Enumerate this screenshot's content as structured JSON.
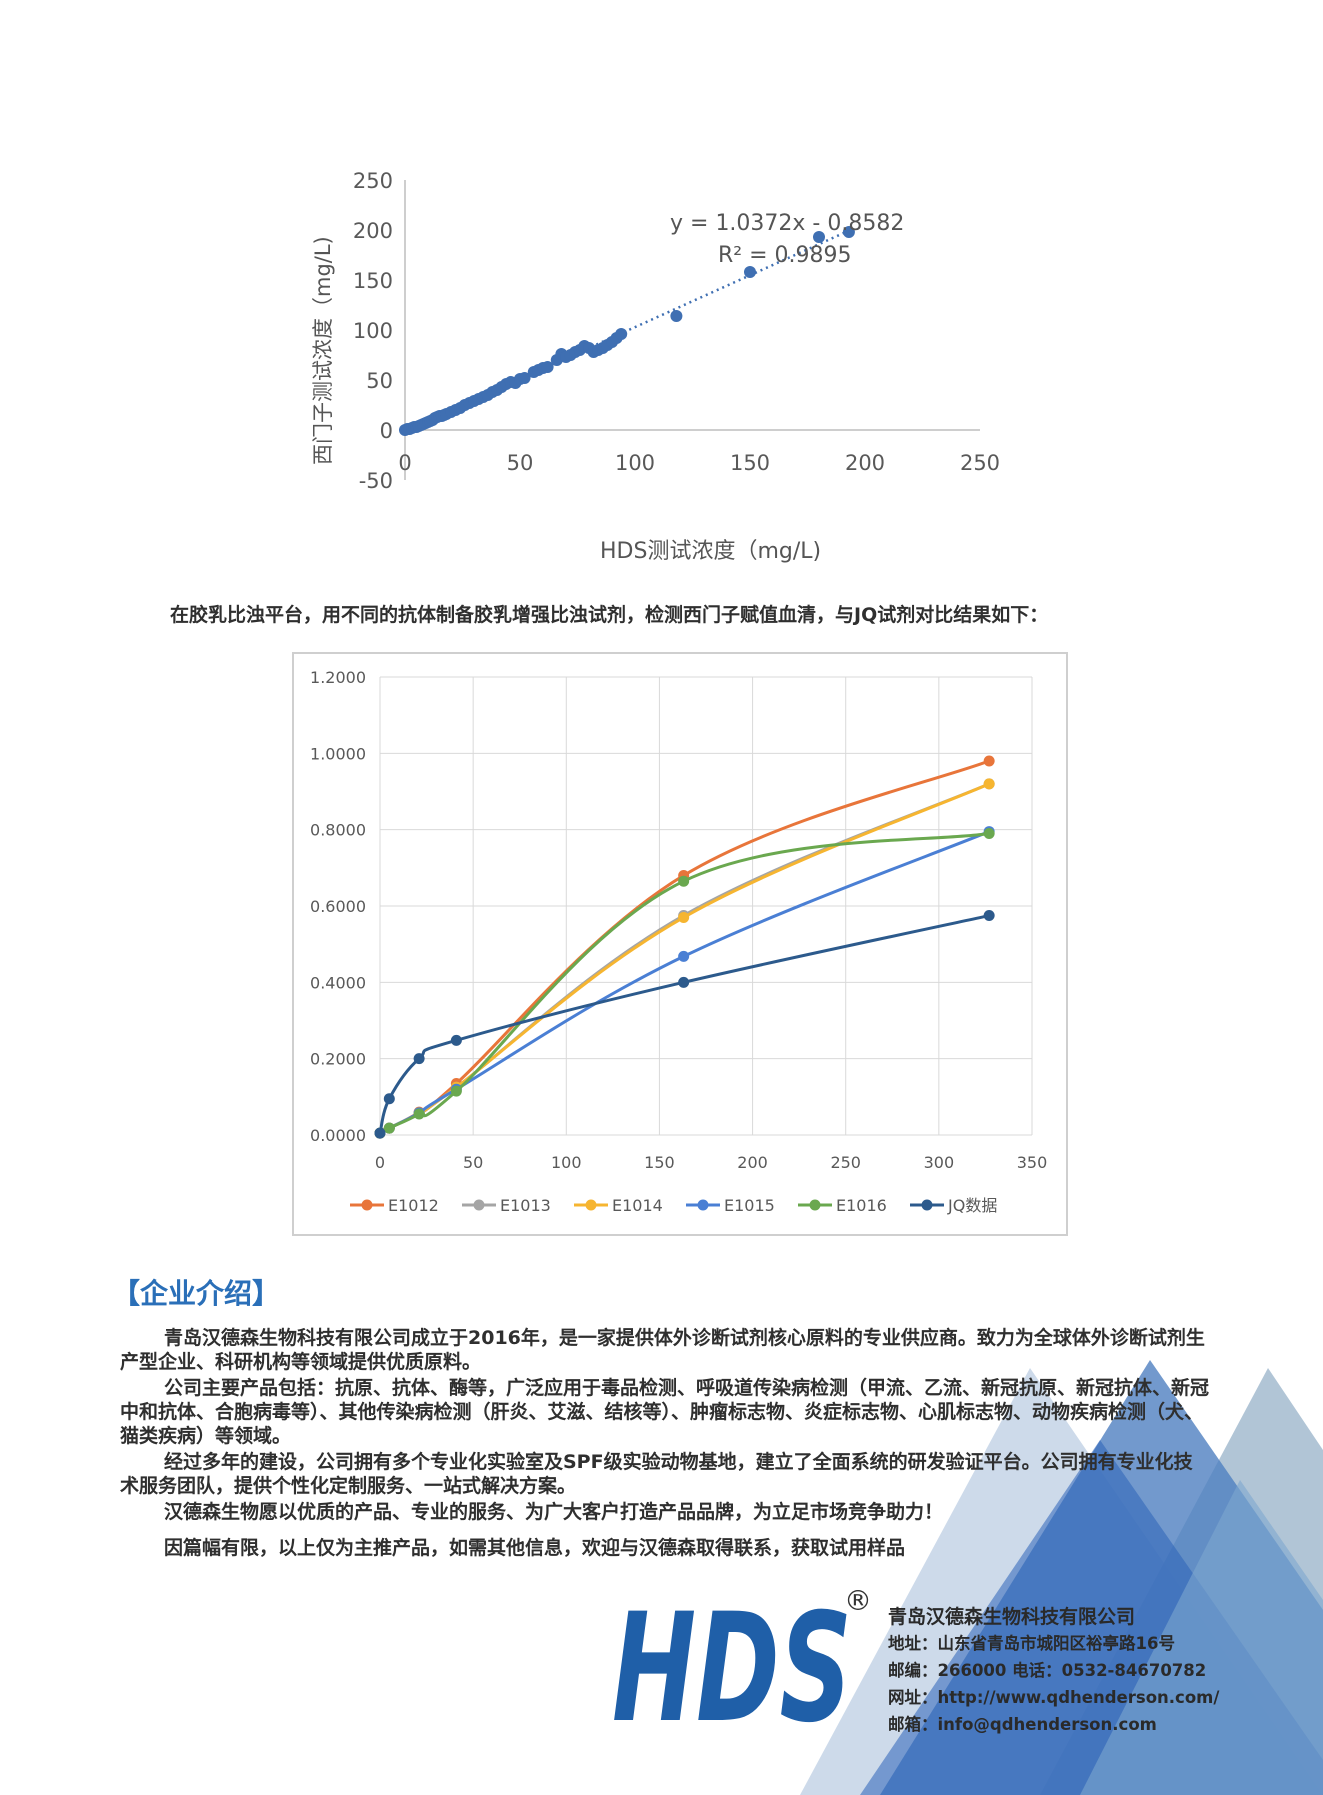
{
  "scatter": {
    "ylabel": "西门子测试浓度（mg/L)",
    "xlabel": "HDS测试浓度（mg/L)",
    "equation": "y = 1.0372x - 0.8582",
    "r2": "R² = 0.9895",
    "xticks": [
      "0",
      "50",
      "100",
      "150",
      "200",
      "250"
    ],
    "yticks": [
      "250",
      "200",
      "150",
      "100",
      "50",
      "0",
      "-50"
    ]
  },
  "caption": "在胶乳比浊平台，用不同的抗体制备胶乳增强比浊试剂，检测西门子赋值血清，与JQ试剂对比结果如下：",
  "section_title": "【企业介绍】",
  "paragraphs": [
    "青岛汉德森生物科技有限公司成立于2016年，是一家提供体外诊断试剂核心原料的专业供应商。致力为全球体外诊断试剂生产型企业、科研机构等领域提供优质原料。",
    "公司主要产品包括：抗原、抗体、酶等，广泛应用于毒品检测、呼吸道传染病检测（甲流、乙流、新冠抗原、新冠抗体、新冠中和抗体、合胞病毒等）、其他传染病检测（肝炎、艾滋、结核等）、肿瘤标志物、炎症标志物、心肌标志物、动物疾病检测（犬、猫类疾病）等领域。",
    "经过多年的建设，公司拥有多个专业化实验室及SPF级实验动物基地，建立了全面系统的研发验证平台。公司拥有专业化技术服务团队，提供个性化定制服务、一站式解决方案。",
    "汉德森生物愿以优质的产品、专业的服务、为广大客户打造产品品牌，为立足市场竞争助力！",
    "因篇幅有限，以上仅为主推产品，如需其他信息，欢迎与汉德森取得联系，获取试用样品"
  ],
  "logo": {
    "text": "HDS",
    "registered": "®"
  },
  "contact": {
    "company": "青岛汉德森生物科技有限公司",
    "address": "地址：山东省青岛市城阳区裕亭路16号",
    "zip_phone": "邮编：266000      电话：0532-84670782",
    "website": "网址：http://www.qdhenderson.com/",
    "email": "邮箱：info@qdhenderson.com"
  },
  "chart_data": [
    {
      "type": "scatter",
      "xlabel": "HDS测试浓度（mg/L)",
      "ylabel": "西门子测试浓度（mg/L)",
      "xlim": [
        0,
        250
      ],
      "ylim": [
        -50,
        250
      ],
      "trendline": {
        "equation": "y = 1.0372x - 0.8582",
        "r2": "R² = 0.9895",
        "slope": 1.0372,
        "intercept": -0.8582
      },
      "points": [
        [
          0,
          0
        ],
        [
          1,
          1
        ],
        [
          2,
          1
        ],
        [
          3,
          2
        ],
        [
          4,
          3
        ],
        [
          5,
          3
        ],
        [
          6,
          4
        ],
        [
          7,
          5
        ],
        [
          8,
          6
        ],
        [
          9,
          7
        ],
        [
          10,
          8
        ],
        [
          11,
          9
        ],
        [
          12,
          10
        ],
        [
          13,
          12
        ],
        [
          14,
          13
        ],
        [
          15,
          14
        ],
        [
          16,
          14
        ],
        [
          17,
          15
        ],
        [
          18,
          16
        ],
        [
          20,
          18
        ],
        [
          22,
          20
        ],
        [
          24,
          22
        ],
        [
          26,
          25
        ],
        [
          28,
          27
        ],
        [
          30,
          29
        ],
        [
          32,
          31
        ],
        [
          34,
          33
        ],
        [
          36,
          35
        ],
        [
          38,
          38
        ],
        [
          40,
          40
        ],
        [
          42,
          43
        ],
        [
          44,
          46
        ],
        [
          46,
          48
        ],
        [
          48,
          47
        ],
        [
          50,
          51
        ],
        [
          52,
          52
        ],
        [
          56,
          58
        ],
        [
          58,
          60
        ],
        [
          60,
          62
        ],
        [
          62,
          63
        ],
        [
          66,
          70
        ],
        [
          68,
          76
        ],
        [
          70,
          73
        ],
        [
          72,
          75
        ],
        [
          74,
          78
        ],
        [
          76,
          80
        ],
        [
          78,
          84
        ],
        [
          80,
          82
        ],
        [
          82,
          78
        ],
        [
          84,
          80
        ],
        [
          86,
          82
        ],
        [
          88,
          85
        ],
        [
          90,
          88
        ],
        [
          92,
          92
        ],
        [
          94,
          96
        ],
        [
          118,
          114
        ],
        [
          150,
          158
        ],
        [
          180,
          193
        ],
        [
          193,
          198
        ]
      ],
      "grid": false,
      "series_color": "#3f6fb2"
    },
    {
      "type": "line",
      "xlim": [
        0,
        350
      ],
      "ylim": [
        0,
        1.2
      ],
      "xticks": [
        "0",
        "50",
        "100",
        "150",
        "200",
        "250",
        "300",
        "350"
      ],
      "yticks": [
        "1.2000",
        "1.0000",
        "0.8000",
        "0.6000",
        "0.4000",
        "0.2000",
        "0.0000"
      ],
      "legend_position": "bottom",
      "grid": true,
      "series": [
        {
          "name": "E1012",
          "color": "#e8753a",
          "points": [
            [
              0,
              0.005
            ],
            [
              5,
              0.018
            ],
            [
              21,
              0.06
            ],
            [
              41,
              0.135
            ],
            [
              163,
              0.68
            ],
            [
              327,
              0.98
            ]
          ]
        },
        {
          "name": "E1013",
          "color": "#a5a5a5",
          "points": [
            [
              0,
              0.005
            ],
            [
              5,
              0.018
            ],
            [
              21,
              0.058
            ],
            [
              41,
              0.125
            ],
            [
              163,
              0.575
            ],
            [
              327,
              0.92
            ]
          ]
        },
        {
          "name": "E1014",
          "color": "#f6b530",
          "points": [
            [
              0,
              0.005
            ],
            [
              5,
              0.018
            ],
            [
              21,
              0.058
            ],
            [
              41,
              0.125
            ],
            [
              163,
              0.57
            ],
            [
              327,
              0.92
            ]
          ]
        },
        {
          "name": "E1015",
          "color": "#4a7fd4",
          "points": [
            [
              0,
              0.005
            ],
            [
              5,
              0.018
            ],
            [
              21,
              0.058
            ],
            [
              41,
              0.12
            ],
            [
              163,
              0.468
            ],
            [
              327,
              0.795
            ]
          ]
        },
        {
          "name": "E1016",
          "color": "#6aa84f",
          "points": [
            [
              0,
              0.005
            ],
            [
              5,
              0.018
            ],
            [
              21,
              0.055
            ],
            [
              41,
              0.115
            ],
            [
              163,
              0.665
            ],
            [
              327,
              0.79
            ]
          ]
        },
        {
          "name": "JQ数据",
          "color": "#2c5a8c",
          "points": [
            [
              0,
              0.005
            ],
            [
              5,
              0.095
            ],
            [
              21,
              0.2
            ],
            [
              41,
              0.248
            ],
            [
              163,
              0.4
            ],
            [
              327,
              0.575
            ]
          ]
        }
      ]
    }
  ],
  "colors": {
    "accent": "#2a6fb8",
    "logo_blue": "#1f5fa8",
    "logo_dark": "#173e72"
  }
}
